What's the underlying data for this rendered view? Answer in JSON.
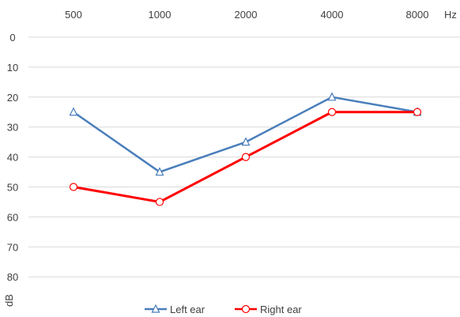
{
  "chart_data": {
    "type": "line",
    "categories": [
      "500",
      "1000",
      "2000",
      "4000",
      "8000"
    ],
    "x_unit_label": "Hz",
    "y_unit_label": "dB",
    "y_ticks": [
      0,
      10,
      20,
      30,
      40,
      50,
      60,
      70,
      80
    ],
    "ylim": [
      0,
      90
    ],
    "y_inverted": true,
    "x_axis_position": "top",
    "grid": true,
    "legend_position": "bottom",
    "series": [
      {
        "name": "Left ear",
        "values": [
          25,
          45,
          35,
          20,
          25
        ],
        "color": "#4a7ebb",
        "marker": "triangle-icon"
      },
      {
        "name": "Right ear",
        "values": [
          50,
          55,
          40,
          25,
          25
        ],
        "color": "#ff0000",
        "marker": "circle-icon"
      }
    ]
  }
}
